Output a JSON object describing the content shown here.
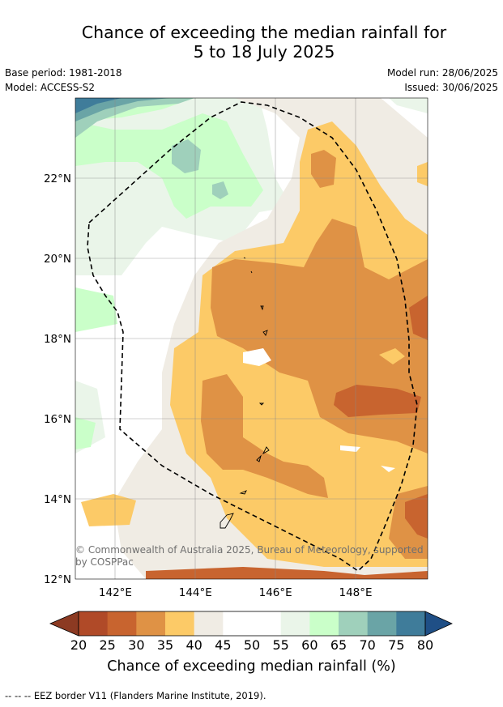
{
  "title_line1": "Chance of exceeding the median rainfall for",
  "title_line2": "5 to 18 July 2025",
  "base_period": "Base period: 1981-2018",
  "model": "Model: ACCESS-S2",
  "model_run": "Model run: 28/06/2025",
  "issued": "Issued: 30/06/2025",
  "copyright": "© Commonwealth of Australia 2025, Bureau of Meteorology, supported by COSPPac",
  "footnote": "--  --  -- EEZ border V11 (Flanders Marine Institute, 2019).",
  "colorbar_label": "Chance of exceeding median rainfall (%)",
  "map_data": {
    "lon_range": [
      141.0,
      149.8
    ],
    "lat_range": [
      12.0,
      24.0
    ],
    "lon_ticks": [
      "142°E",
      "144°E",
      "146°E",
      "148°E"
    ],
    "lat_ticks": [
      "12°N",
      "14°N",
      "16°N",
      "18°N",
      "20°N",
      "22°N"
    ]
  },
  "colorbar": {
    "ticks": [
      "20",
      "25",
      "30",
      "35",
      "40",
      "45",
      "50",
      "55",
      "60",
      "65",
      "70",
      "75",
      "80"
    ],
    "colors": [
      "#b04a28",
      "#c8642f",
      "#df9245",
      "#fcca67",
      "#f0ece4",
      "#ffffff",
      "#ffffff",
      "#eaf5e9",
      "#caffc9",
      "#9fd0bb",
      "#6aa4a6",
      "#3f7c9a"
    ],
    "under_color": "#8c3a22",
    "over_color": "#1f4f86"
  }
}
